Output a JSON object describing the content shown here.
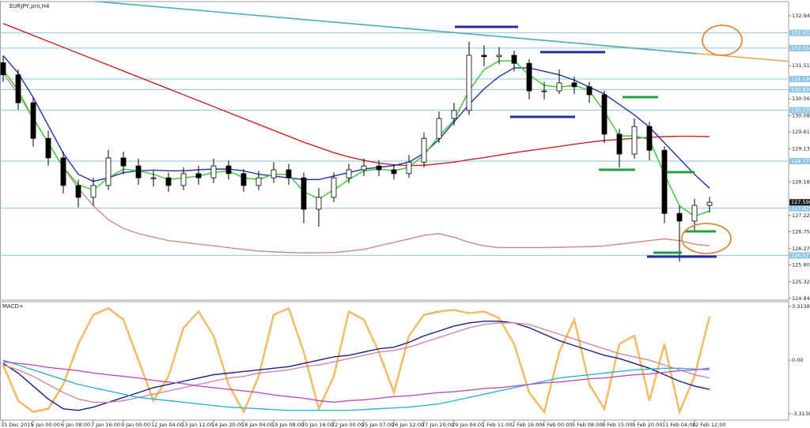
{
  "chart_data": [
    {
      "type": "candlestick",
      "title": "EURJPY,pro,H4",
      "categories": [
        "31 Dec 2015",
        null,
        "5 Jan 00:00",
        null,
        "6 Jan 08:00",
        null,
        "7 Jan 16:00",
        null,
        "9 Jan 00:00",
        null,
        "12 Jan 04:00",
        null,
        "13 Jan 12:00",
        null,
        "14 Jan 20:00",
        null,
        "18 Jan 04:00",
        null,
        "19 Jan 08:00",
        null,
        "20 Jan 16:00",
        null,
        "22 Jan 00:00",
        null,
        "25 Jan 07:00",
        null,
        "26 Jan 12:00",
        null,
        "27 Jan 20:00",
        null,
        "29 Jan 04:00",
        null,
        "1 Feb 11:00",
        null,
        "2 Feb 16:00",
        null,
        "4 Feb 00:00",
        null,
        "5 Feb 08:00",
        null,
        "8 Feb 15:00",
        null,
        "9 Feb 20:00",
        null,
        "11 Feb 04:00",
        null,
        "12 Feb 12:00",
        null
      ],
      "open": [
        131.6,
        131.25,
        130.45,
        129.43,
        128.87,
        128.08,
        127.74,
        128.08,
        128.87,
        128.64,
        128.3,
        128.3,
        128.08,
        128.42,
        128.3,
        128.64,
        128.42,
        128.08,
        128.3,
        128.53,
        128.3,
        127.4,
        127.74,
        128.3,
        128.53,
        128.64,
        128.53,
        128.42,
        128.75,
        129.43,
        130.0,
        130.23,
        131.81,
        131.77,
        131.81,
        131.58,
        130.79,
        130.79,
        131.02,
        130.91,
        130.68,
        129.55,
        128.98,
        129.77,
        129.09,
        127.28,
        127.06,
        127.51
      ],
      "high": [
        131.8,
        131.4,
        130.6,
        129.65,
        129.05,
        128.25,
        128.3,
        129.1,
        129.05,
        128.85,
        128.5,
        128.45,
        128.6,
        128.65,
        128.85,
        128.8,
        128.55,
        128.5,
        128.75,
        128.7,
        128.45,
        128.0,
        128.45,
        128.7,
        128.85,
        128.8,
        128.7,
        128.95,
        129.6,
        130.2,
        130.45,
        132.2,
        132.1,
        132.05,
        131.95,
        131.7,
        131.05,
        131.4,
        131.2,
        131.05,
        130.8,
        129.7,
        130.0,
        129.9,
        129.2,
        127.5,
        127.7,
        127.75
      ],
      "low": [
        131.05,
        130.25,
        129.2,
        128.65,
        127.85,
        127.45,
        127.5,
        127.95,
        128.4,
        128.1,
        128.05,
        127.9,
        127.95,
        128.1,
        128.15,
        128.25,
        127.9,
        127.95,
        128.15,
        128.1,
        127.0,
        126.9,
        127.6,
        128.15,
        128.35,
        128.35,
        128.25,
        128.3,
        128.6,
        129.3,
        129.8,
        130.1,
        131.5,
        131.55,
        131.35,
        130.55,
        130.55,
        130.7,
        130.7,
        130.45,
        129.3,
        128.6,
        128.85,
        128.8,
        127.0,
        125.9,
        126.8,
        127.3
      ],
      "close": [
        131.25,
        130.45,
        129.43,
        128.87,
        128.08,
        127.74,
        128.08,
        128.87,
        128.64,
        128.3,
        128.3,
        128.08,
        128.42,
        128.3,
        128.64,
        128.42,
        128.08,
        128.3,
        128.53,
        128.3,
        127.4,
        127.74,
        128.3,
        128.53,
        128.64,
        128.53,
        128.42,
        128.75,
        129.43,
        130.0,
        130.23,
        131.81,
        131.77,
        131.81,
        131.58,
        130.79,
        130.79,
        131.02,
        130.91,
        130.68,
        129.55,
        128.98,
        129.77,
        129.09,
        127.28,
        127.06,
        127.51,
        127.598
      ],
      "series": [
        {
          "color": "#cc2222",
          "values": [
            132.72,
            132.55,
            132.38,
            132.21,
            132.04,
            131.87,
            131.7,
            131.53,
            131.36,
            131.19,
            131.02,
            130.85,
            130.68,
            130.51,
            130.34,
            130.17,
            130.0,
            129.83,
            129.66,
            129.49,
            129.32,
            129.17,
            129.02,
            128.9,
            128.8,
            128.72,
            128.67,
            128.65,
            128.66,
            128.7,
            128.75,
            128.82,
            128.88,
            128.95,
            129.02,
            129.08,
            129.14,
            129.2,
            129.26,
            129.32,
            129.37,
            129.4,
            129.43,
            129.46,
            129.48,
            129.49,
            129.49,
            129.48
          ]
        },
        {
          "color": "#c98b8b",
          "values": [
            131.3,
            130.7,
            130.0,
            129.3,
            128.6,
            128.0,
            127.5,
            127.1,
            126.85,
            126.7,
            126.6,
            126.5,
            126.45,
            126.4,
            126.35,
            126.3,
            126.25,
            126.2,
            126.18,
            126.16,
            126.15,
            126.15,
            126.16,
            126.2,
            126.25,
            126.35,
            126.45,
            126.55,
            126.65,
            126.7,
            126.6,
            126.45,
            126.35,
            126.3,
            126.3,
            126.3,
            126.3,
            126.31,
            126.32,
            126.33,
            126.35,
            126.4,
            126.45,
            126.5,
            126.55,
            126.5,
            126.4,
            126.35
          ]
        },
        {
          "color": "#2233aa",
          "values": [
            131.8,
            131.3,
            130.6,
            129.8,
            129.0,
            128.4,
            128.2,
            128.3,
            128.45,
            128.5,
            128.52,
            128.5,
            128.5,
            128.53,
            128.55,
            128.55,
            128.5,
            128.4,
            128.35,
            128.3,
            128.25,
            128.25,
            128.35,
            128.45,
            128.55,
            128.6,
            128.65,
            128.75,
            129.0,
            129.4,
            129.9,
            130.4,
            130.85,
            131.2,
            131.45,
            131.45,
            131.35,
            131.25,
            131.1,
            130.9,
            130.7,
            130.4,
            130.1,
            129.75,
            129.3,
            128.85,
            128.4,
            128.0
          ]
        },
        {
          "color": "#33cc33",
          "values": [
            131.4,
            130.8,
            130.0,
            129.3,
            128.6,
            128.1,
            127.95,
            128.3,
            128.55,
            128.5,
            128.4,
            128.25,
            128.3,
            128.35,
            128.45,
            128.5,
            128.3,
            128.25,
            128.4,
            128.4,
            127.9,
            127.7,
            127.95,
            128.25,
            128.5,
            128.55,
            128.5,
            128.6,
            128.95,
            129.5,
            129.95,
            130.8,
            131.4,
            131.65,
            131.65,
            131.25,
            130.95,
            130.9,
            130.95,
            130.8,
            130.2,
            129.5,
            129.5,
            129.4,
            128.4,
            127.5,
            127.2,
            127.35
          ]
        }
      ],
      "ylim": [
        124.797,
        133.349
      ],
      "yticks": [
        132.942,
        131.512,
        130.562,
        130.082,
        129.612,
        129.132,
        128.182,
        127.222,
        126.752,
        126.272,
        125.802,
        125.322,
        124.842
      ],
      "levels": [
        132.452,
        132.016,
        {
          "value": 131.13,
          "label": "131.130"
        },
        {
          "value": 130.83,
          "label": "130.830"
        },
        130.235,
        128.778,
        127.429,
        126.077
      ],
      "level_color": "#8ec6e6"
    },
    {
      "type": "line",
      "title": "MACD+",
      "series": [
        {
          "color": "#f0a030",
          "values": [
            -0.3,
            -2.5,
            -3.2,
            -3.0,
            -1.5,
            1.0,
            2.8,
            3.2,
            2.5,
            0.0,
            -2.5,
            -1.0,
            2.0,
            3.0,
            1.5,
            -1.5,
            -3.2,
            -1.0,
            2.8,
            3.2,
            0.5,
            -3.0,
            -1.0,
            3.0,
            2.5,
            0.5,
            -2.0,
            1.5,
            2.8,
            3.0,
            3.1,
            2.9,
            3.0,
            2.6,
            1.0,
            -2.0,
            -3.2,
            0.5,
            2.5,
            -1.5,
            -3.0,
            1.0,
            1.5,
            -2.5,
            1.0,
            -3.2,
            -1.0,
            2.7
          ]
        },
        {
          "color": "#1a1f8c",
          "values": [
            -0.2,
            -0.8,
            -1.6,
            -2.4,
            -3.0,
            -3.1,
            -2.9,
            -2.6,
            -2.3,
            -2.0,
            -1.7,
            -1.5,
            -1.3,
            -1.1,
            -0.9,
            -0.8,
            -0.7,
            -0.6,
            -0.5,
            -0.4,
            -0.2,
            0.0,
            0.2,
            0.3,
            0.5,
            0.7,
            0.8,
            1.1,
            1.5,
            1.8,
            2.1,
            2.3,
            2.4,
            2.4,
            2.3,
            2.0,
            1.6,
            1.2,
            0.9,
            0.6,
            0.3,
            0.1,
            -0.2,
            -0.5,
            -0.9,
            -1.3,
            -1.6,
            -1.8
          ]
        },
        {
          "color": "#d08a9a",
          "values": [
            -0.3,
            -0.6,
            -1.0,
            -1.5,
            -2.0,
            -2.4,
            -2.6,
            -2.6,
            -2.5,
            -2.3,
            -2.1,
            -1.9,
            -1.7,
            -1.5,
            -1.3,
            -1.1,
            -1.0,
            -0.8,
            -0.7,
            -0.6,
            -0.4,
            -0.3,
            -0.1,
            0.1,
            0.3,
            0.5,
            0.6,
            0.8,
            1.1,
            1.4,
            1.7,
            2.0,
            2.2,
            2.3,
            2.3,
            2.2,
            1.9,
            1.6,
            1.3,
            1.0,
            0.7,
            0.4,
            0.2,
            0.0,
            -0.3,
            -0.6,
            -0.9,
            -1.1
          ]
        },
        {
          "color": "#2ab5d8",
          "values": [
            0.0,
            -0.3,
            -0.6,
            -0.9,
            -1.2,
            -1.5,
            -1.7,
            -1.9,
            -2.1,
            -2.3,
            -2.4,
            -2.5,
            -2.6,
            -2.7,
            -2.8,
            -2.9,
            -2.95,
            -3.0,
            -3.05,
            -3.1,
            -3.1,
            -3.1,
            -3.1,
            -3.1,
            -3.05,
            -3.0,
            -2.95,
            -2.9,
            -2.8,
            -2.7,
            -2.5,
            -2.3,
            -2.1,
            -1.9,
            -1.7,
            -1.5,
            -1.3,
            -1.1,
            -1.0,
            -0.9,
            -0.8,
            -0.7,
            -0.6,
            -0.55,
            -0.5,
            -0.5,
            -0.55,
            -0.6
          ]
        },
        {
          "color": "#c050c0",
          "values": [
            -0.1,
            -0.2,
            -0.3,
            -0.45,
            -0.55,
            -0.65,
            -0.8,
            -0.9,
            -1.0,
            -1.1,
            -1.25,
            -1.35,
            -1.45,
            -1.6,
            -1.7,
            -1.8,
            -1.9,
            -2.0,
            -2.15,
            -2.25,
            -2.35,
            -2.5,
            -2.6,
            -2.5,
            -2.45,
            -2.35,
            -2.25,
            -2.2,
            -2.1,
            -2.0,
            -1.95,
            -1.85,
            -1.75,
            -1.7,
            -1.6,
            -1.5,
            -1.4,
            -1.35,
            -1.25,
            -1.15,
            -1.1,
            -1.0,
            -0.9,
            -0.85,
            -0.75,
            -0.65,
            -0.6,
            -0.5
          ]
        }
      ],
      "ylim": [
        -3.7,
        3.61
      ],
      "yticks": [
        3.3138,
        {
          "value": 0,
          "label": "0.00"
        },
        -3.3138
      ]
    }
  ]
}
